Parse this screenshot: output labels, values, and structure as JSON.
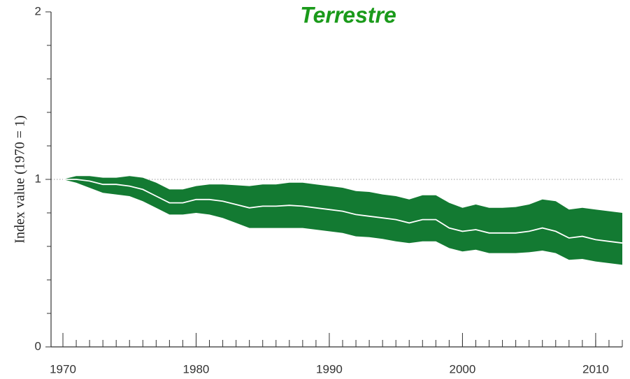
{
  "chart_data": {
    "type": "band_line",
    "title": "Terrestre",
    "y_label": "Index value (1970 = 1)",
    "x": [
      1970,
      1971,
      1972,
      1973,
      1974,
      1975,
      1976,
      1977,
      1978,
      1979,
      1980,
      1981,
      1982,
      1983,
      1984,
      1985,
      1986,
      1987,
      1988,
      1989,
      1990,
      1991,
      1992,
      1993,
      1994,
      1995,
      1996,
      1997,
      1998,
      1999,
      2000,
      2001,
      2002,
      2003,
      2004,
      2005,
      2006,
      2007,
      2008,
      2009,
      2010,
      2011,
      2012
    ],
    "values": [
      1.0,
      1.0,
      0.99,
      0.97,
      0.97,
      0.96,
      0.94,
      0.9,
      0.86,
      0.86,
      0.88,
      0.88,
      0.87,
      0.85,
      0.83,
      0.84,
      0.84,
      0.845,
      0.84,
      0.83,
      0.82,
      0.81,
      0.79,
      0.78,
      0.77,
      0.76,
      0.74,
      0.76,
      0.76,
      0.71,
      0.69,
      0.7,
      0.68,
      0.68,
      0.68,
      0.69,
      0.71,
      0.69,
      0.65,
      0.66,
      0.64,
      0.63,
      0.62
    ],
    "upper": [
      1.0,
      1.02,
      1.02,
      1.01,
      1.01,
      1.02,
      1.01,
      0.98,
      0.94,
      0.94,
      0.96,
      0.97,
      0.97,
      0.965,
      0.96,
      0.97,
      0.97,
      0.98,
      0.98,
      0.97,
      0.96,
      0.95,
      0.93,
      0.925,
      0.91,
      0.9,
      0.88,
      0.905,
      0.905,
      0.86,
      0.83,
      0.85,
      0.83,
      0.83,
      0.835,
      0.85,
      0.88,
      0.87,
      0.82,
      0.83,
      0.82,
      0.81,
      0.8
    ],
    "lower": [
      1.0,
      0.98,
      0.95,
      0.92,
      0.91,
      0.9,
      0.87,
      0.83,
      0.79,
      0.79,
      0.8,
      0.79,
      0.77,
      0.74,
      0.71,
      0.71,
      0.71,
      0.71,
      0.71,
      0.7,
      0.69,
      0.68,
      0.66,
      0.655,
      0.645,
      0.63,
      0.62,
      0.63,
      0.63,
      0.59,
      0.57,
      0.58,
      0.56,
      0.56,
      0.56,
      0.565,
      0.575,
      0.56,
      0.52,
      0.525,
      0.51,
      0.5,
      0.49
    ],
    "band_color": "#137a32",
    "line_color": "#ffffff",
    "xlim": [
      1970,
      2012
    ],
    "xticks": [
      1970,
      1980,
      1990,
      2000,
      2010
    ],
    "ylim": [
      0,
      2
    ],
    "yticks": [
      0,
      1,
      2
    ],
    "yminor_ticks": [
      0.2,
      0.4,
      0.6,
      0.8,
      1.2,
      1.4,
      1.6,
      1.8
    ],
    "reference_line": 1
  }
}
